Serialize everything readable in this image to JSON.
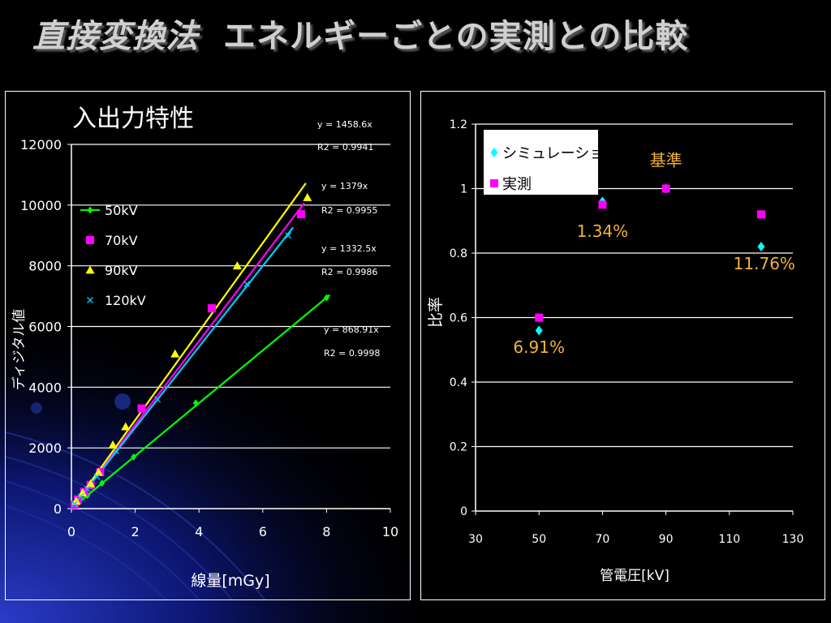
{
  "slide": {
    "title_main": "直接変換法",
    "title_sub": "エネルギーごとの実測との比較"
  },
  "chart_data": [
    {
      "type": "scatter",
      "title": "入出力特性",
      "xlabel": "線量[mGy]",
      "ylabel": "ディジタル値",
      "xlim": [
        0,
        10
      ],
      "ylim": [
        0,
        12000
      ],
      "xticks": [
        0,
        2,
        4,
        6,
        8,
        10
      ],
      "yticks": [
        0,
        2000,
        4000,
        6000,
        8000,
        10000,
        12000
      ],
      "grid": "horizontal",
      "legend_position": "left",
      "series": [
        {
          "name": "50kV",
          "color": "#00ff00",
          "marker": "diamond-line",
          "points": [
            [
              0.07,
              60
            ],
            [
              0.25,
              220
            ],
            [
              0.5,
              430
            ],
            [
              0.96,
              840
            ],
            [
              1.95,
              1700
            ],
            [
              3.9,
              3480
            ],
            [
              8.0,
              6950
            ]
          ],
          "fit": {
            "slope": 868.91,
            "x_max": 8.1
          },
          "equation": "y = 868.91x",
          "r2": "R2 = 0.9998"
        },
        {
          "name": "70kV",
          "color": "#ff00ff",
          "marker": "square",
          "points": [
            [
              0.1,
              130
            ],
            [
              0.2,
              300
            ],
            [
              0.4,
              550
            ],
            [
              0.6,
              780
            ],
            [
              0.9,
              1200
            ],
            [
              2.2,
              3300
            ],
            [
              4.4,
              6600
            ],
            [
              7.2,
              9700
            ]
          ],
          "fit": {
            "slope": 1379,
            "x_max": 7.3
          },
          "equation": "y = 1379x",
          "r2": "R2 = 0.9955"
        },
        {
          "name": "90kV",
          "color": "#ffff00",
          "marker": "triangle",
          "points": [
            [
              0.15,
              250
            ],
            [
              0.35,
              520
            ],
            [
              0.6,
              820
            ],
            [
              0.85,
              1200
            ],
            [
              1.3,
              2100
            ],
            [
              1.7,
              2700
            ],
            [
              3.25,
              5100
            ],
            [
              5.2,
              8000
            ],
            [
              7.4,
              10250
            ]
          ],
          "fit": {
            "slope": 1458.6,
            "x_max": 7.35
          },
          "equation": "y = 1458.6x",
          "r2": "R2 = 0.9941"
        },
        {
          "name": "120kV",
          "color": "#00ccff",
          "marker": "x",
          "points": [
            [
              0.1,
              150
            ],
            [
              0.3,
              400
            ],
            [
              0.5,
              650
            ],
            [
              0.8,
              1050
            ],
            [
              1.4,
              1900
            ],
            [
              2.7,
              3600
            ],
            [
              5.5,
              7400
            ],
            [
              6.8,
              9000
            ]
          ],
          "fit": {
            "slope": 1332.5,
            "x_max": 6.95
          },
          "equation": "y = 1332.5x",
          "r2": "R2 = 0.9986"
        }
      ]
    },
    {
      "type": "scatter",
      "xlabel": "管電圧[kV]",
      "ylabel": "比率",
      "xlim": [
        30,
        130
      ],
      "ylim": [
        0,
        1.2
      ],
      "xticks": [
        30,
        50,
        70,
        90,
        110,
        130
      ],
      "yticks": [
        "0",
        "0.2",
        "0.4",
        "0.6",
        "0.8",
        "1",
        "1.2"
      ],
      "grid": "horizontal",
      "legend_position": "top-left",
      "series": [
        {
          "name": "シミュレーション",
          "color": "#00ffff",
          "marker": "diamond",
          "points": [
            [
              50,
              0.56
            ],
            [
              70,
              0.96
            ],
            [
              90,
              1.0
            ],
            [
              120,
              0.82
            ]
          ]
        },
        {
          "name": "実測",
          "color": "#ff00ff",
          "marker": "square",
          "points": [
            [
              50,
              0.6
            ],
            [
              70,
              0.95
            ],
            [
              90,
              1.0
            ],
            [
              120,
              0.92
            ]
          ]
        }
      ],
      "annotations": [
        {
          "text": "基準",
          "x": 90,
          "y": 1.07
        },
        {
          "text": "1.34%",
          "x": 70,
          "y": 0.85
        },
        {
          "text": "11.76%",
          "x": 121,
          "y": 0.75
        },
        {
          "text": "6.91%",
          "x": 50,
          "y": 0.49
        }
      ]
    }
  ]
}
